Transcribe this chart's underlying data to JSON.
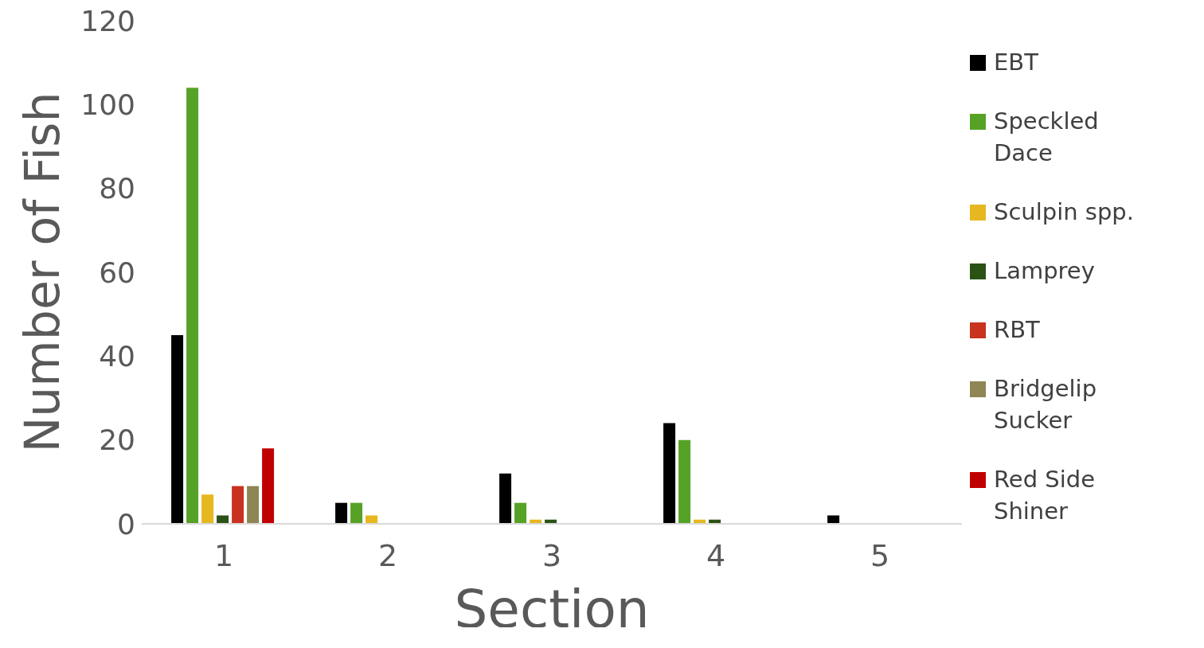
{
  "chart_data": {
    "type": "bar",
    "xlabel": "Section",
    "ylabel": "Number of Fish",
    "categories": [
      "1",
      "2",
      "3",
      "4",
      "5"
    ],
    "series": [
      {
        "name": "EBT",
        "color": "#000000",
        "values": [
          45,
          5,
          12,
          24,
          2
        ]
      },
      {
        "name": "Speckled Dace",
        "color": "#56a227",
        "values": [
          104,
          5,
          5,
          20,
          0
        ]
      },
      {
        "name": "Sculpin spp.",
        "color": "#e6b71e",
        "values": [
          7,
          2,
          1,
          1,
          0
        ]
      },
      {
        "name": "Lamprey",
        "color": "#2b5215",
        "values": [
          2,
          0,
          1,
          1,
          0
        ]
      },
      {
        "name": "RBT",
        "color": "#c8321e",
        "values": [
          9,
          0,
          0,
          0,
          0
        ]
      },
      {
        "name": "Bridgelip Sucker",
        "color": "#8e8655",
        "values": [
          9,
          0,
          0,
          0,
          0
        ]
      },
      {
        "name": "Red Side Shiner",
        "color": "#c00000",
        "values": [
          18,
          0,
          0,
          0,
          0
        ]
      }
    ],
    "ylim": [
      0,
      120
    ],
    "yticks": [
      0,
      20,
      40,
      60,
      80,
      100,
      120
    ],
    "grid": false,
    "legend": "right"
  }
}
